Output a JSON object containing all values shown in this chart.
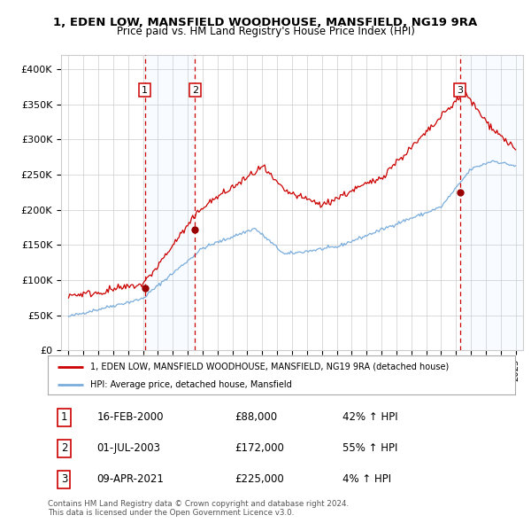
{
  "title1": "1, EDEN LOW, MANSFIELD WOODHOUSE, MANSFIELD, NG19 9RA",
  "title2": "Price paid vs. HM Land Registry's House Price Index (HPI)",
  "ylabel_ticks": [
    "£0",
    "£50K",
    "£100K",
    "£150K",
    "£200K",
    "£250K",
    "£300K",
    "£350K",
    "£400K"
  ],
  "ytick_values": [
    0,
    50000,
    100000,
    150000,
    200000,
    250000,
    300000,
    350000,
    400000
  ],
  "xlim": [
    1994.5,
    2025.5
  ],
  "ylim": [
    0,
    420000
  ],
  "sale_dates": [
    "2000-02-16",
    "2003-07-01",
    "2021-04-09"
  ],
  "sale_prices": [
    88000,
    172000,
    225000
  ],
  "sale_labels": [
    "1",
    "2",
    "3"
  ],
  "legend_line1": "1, EDEN LOW, MANSFIELD WOODHOUSE, MANSFIELD, NG19 9RA (detached house)",
  "legend_line2": "HPI: Average price, detached house, Mansfield",
  "table_rows": [
    [
      "1",
      "16-FEB-2000",
      "£88,000",
      "42% ↑ HPI"
    ],
    [
      "2",
      "01-JUL-2003",
      "£172,000",
      "55% ↑ HPI"
    ],
    [
      "3",
      "09-APR-2021",
      "£225,000",
      "4% ↑ HPI"
    ]
  ],
  "footer": "Contains HM Land Registry data © Crown copyright and database right 2024.\nThis data is licensed under the Open Government Licence v3.0.",
  "line_color_red": "#cc0000",
  "line_color_blue": "#7aaddc",
  "background_color": "#ffffff",
  "grid_color": "#cccccc",
  "sale_shade_color": "#ddeeff"
}
